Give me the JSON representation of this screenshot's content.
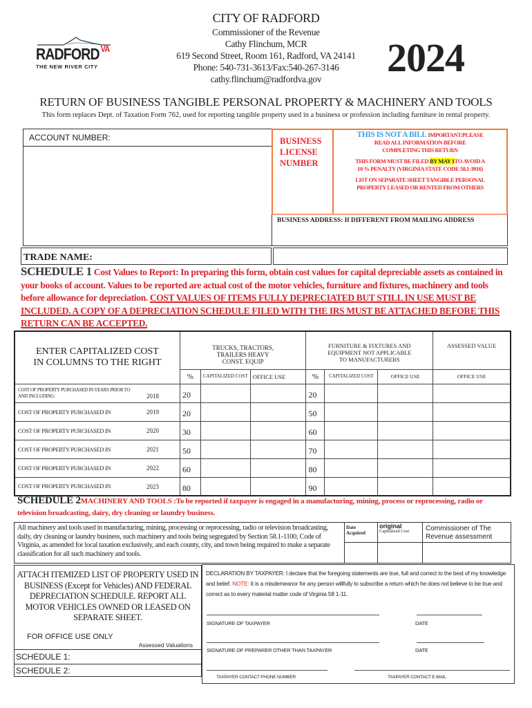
{
  "logo": {
    "text": "RADFORD",
    "state": "VA",
    "tagline": "THE NEW RIVER CITY"
  },
  "header": {
    "city": "CITY OF RADFORD",
    "lines": [
      "Commissioner of the Revenue",
      "Cathy Flinchum, MCR",
      "619 Second Street, Room 161, Radford, VA 24141",
      "Phone: 540-731-3613/Fax:540-267-3146",
      "cathy.flinchum@radfordva.gov"
    ],
    "year": "2024"
  },
  "title": "RETURN OF BUSINESS TANGIBLE PERSONAL PROPERTY & MACHINERY AND TOOLS",
  "subtitle": "This form replaces Dept. of Taxation Form 762, used for reporting tangible property used in a business or profession including furniture in rental property.",
  "account": {
    "label": "ACCOUNT NUMBER:"
  },
  "license": {
    "label": "BUSINESS LICENSE NUMBER"
  },
  "notice": {
    "not_bill": "THIS IS NOT A BILL",
    "important": "IMPORTANT:PLEASE",
    "read": "READ ALL INFORMATION BEFORE",
    "completing": "COMPLETING THIS RETURN",
    "must_file": "THIS FORM MUST BE FILED",
    "by_may": "BY MAY 1",
    "avoid": "TO AVOID A",
    "penalty": "10 % PENALTY (VIRGINIA STATE CODE 58.1-3916)",
    "list": "LIST ON SEPARATE SHEET TANGIBLE PERSONAL PROPERTY LEASED OR RENTED FROM OTHERS",
    "highlight_color": "#ffff00"
  },
  "business_address": "BUSINESS ADDRESS: If DIFFERENT FROM MAILING ADDRESS",
  "trade_name": "TRADE NAME:",
  "schedule1": {
    "heading": "SCHEDULE 1",
    "text": "Cost Values to Report: In preparing this form, obtain cost values for capital depreciable assets as contained in your books of account. Values to be reported are actual cost of the motor vehicles, furniture and fixtures, machinery and tools before allowance for depreciation.",
    "underlined": "COST VALUES OF ITEMS FULLY DEPRECIATED BUT STILL IN USE MUST BE INCLUDED. A COPY OF A DEPRECIATION SCHEDULE FILED WITH THE IRS MUST BE ATTACHED BEFORE THIS RETURN CAN BE ACCEPTED."
  },
  "table": {
    "enter": "ENTER CAPITALIZED COST IN COLUMNS TO THE RIGHT",
    "trucks": "TRUCKS, TRACTORS, TRAILERS HEAVY CONST. EQUIP",
    "furniture": "FURNITURE & FIXTURES AND EQUIPMENT NOT APPLICABLE TO MANUFACTURERS",
    "assessed": "ASSESSED VALUE",
    "pct": "%",
    "cap": "CAPITALIZED COST",
    "office": "OFFICE USE",
    "rows": [
      {
        "label": "COST OF PROPERTY PURCHASED IN YEARS PRIOR TO AND INCLUDING:",
        "year": "2018",
        "p1": "20",
        "p2": "20"
      },
      {
        "label": "COST OF PROPERTY PURCHASED IN",
        "year": "2019",
        "p1": "20",
        "p2": "50"
      },
      {
        "label": "COST OF PROPERTY PURCHASED IN",
        "year": "2020",
        "p1": "30",
        "p2": "60"
      },
      {
        "label": "COST OF PROPERTY PURCHASED IN",
        "year": "2021",
        "p1": "50",
        "p2": "70"
      },
      {
        "label": "COST OF PROPERTY PURCHASED IN",
        "year": "2022",
        "p1": "60",
        "p2": "80"
      },
      {
        "label": "COST OF PROPERTY PURCHASED IN",
        "year": "2023",
        "p1": "80",
        "p2": "90"
      }
    ]
  },
  "schedule2": {
    "heading": "SCHEDULE 2",
    "text": "MACHINERY AND TOOLS :To be reported if taxpayer is engaged in a manufacturing, mining, process or reprocessing, radio or television broadcasting, dairy, dry cleaning or laundry business.",
    "body": "All machinery and tools used in manufacturing, mining, processing or reprocessing, radio or television broadcasting, daily, dry cleaning or laundry business, such machinery and tools being segregated by Section 58.1-1100, Code of Virginia, as amended for local taxation exclusively, and each county, city, and town being required to make a separate classification for all such machinery and tools.",
    "date_acquired": "Date Acquired",
    "original": "original",
    "cap_cost": "Capitalized Cost",
    "commissioner": "Commissioner of The Revenue assessment"
  },
  "attach": "ATTACH ITEMIZED LIST OF PROPERTY USED IN BUSINESS (Except for Vehicles) AND FEDERAL DEPRECIATION SCHEDULE. REPORT ALL MOTOR VEHICLES OWNED OR LEASED ON SEPARATE SHEET.",
  "office_only": "FOR OFFICE USE ONLY",
  "assessed_valuations": "Assessed Valuations",
  "sched1_label": "SCHEDULE 1:",
  "sched2_label": "SCHEDULE 2:",
  "declaration": {
    "lead": "DECLARATION BY TAXPAYER:",
    "text": "I declare that the foregoing statements are true, full and correct to the best of my knowledge and belief.",
    "note": "NOTE:",
    "note_text": "It is a misdemeanor for any person willfully to subscribe a return which he does not believe to be true and correct as to every material matter code of Virginia 58 1-11.",
    "sig_taxpayer": "SIGNATURE OF TAXPAYER",
    "date": "DATE",
    "sig_preparer": "SIGNATURE OF PREPARER OTHER THAN TAXPAYER",
    "phone": "TAXPAYER CONTACT PHONE NUMBER",
    "email": "TAXPAYER CONTACT E-MAIL"
  }
}
